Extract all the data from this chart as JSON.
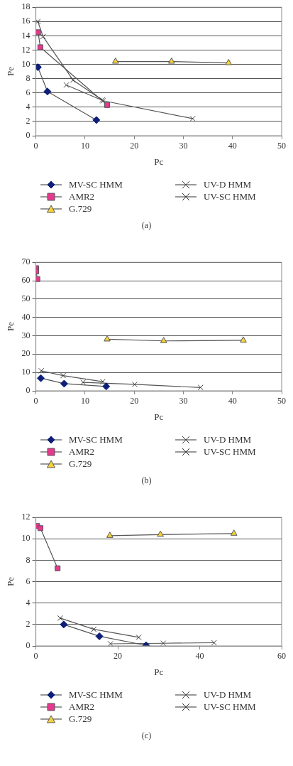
{
  "chart_data": [
    {
      "type": "line",
      "xlabel": "Pc",
      "ylabel": "Pe",
      "xlim": [
        0,
        50
      ],
      "xticks": [
        0,
        10,
        20,
        30,
        40,
        50
      ],
      "ylim": [
        0,
        18
      ],
      "yticks": [
        0,
        2,
        4,
        6,
        8,
        10,
        12,
        14,
        16,
        18
      ],
      "grid": "y",
      "legend": "bottom",
      "annotations": [
        "(a)"
      ],
      "series": [
        {
          "name": "MV-SC HMM",
          "color": "#0d1f78",
          "marker": "diamond",
          "x": [
            0.4,
            2.35,
            12.3
          ],
          "values": [
            9.6,
            6.2,
            2.2
          ]
        },
        {
          "name": "UV-D HMM",
          "color": "#444444",
          "marker": "cross",
          "x": [
            6.2,
            13.7,
            31.9
          ],
          "values": [
            7.1,
            4.9,
            2.4
          ]
        },
        {
          "name": "AMR2",
          "color": "#e8378f",
          "marker": "square",
          "x": [
            0.45,
            0.9,
            14.5
          ],
          "values": [
            14.5,
            12.4,
            4.3
          ]
        },
        {
          "name": "UV-SC HMM",
          "color": "#333333",
          "marker": "cross",
          "x": [
            0.4,
            1.45,
            7.55,
            13.5
          ],
          "values": [
            16,
            13.9,
            7.8,
            5.0
          ]
        },
        {
          "name": "G.729",
          "color": "#f5d33c",
          "marker": "triangle",
          "x": [
            16.2,
            27.6,
            39.2
          ],
          "values": [
            10.4,
            10.4,
            10.2
          ]
        }
      ]
    },
    {
      "type": "line",
      "xlabel": "Pc",
      "ylabel": "Pe",
      "xlim": [
        0,
        50
      ],
      "xticks": [
        0,
        10,
        20,
        30,
        40,
        50
      ],
      "ylim": [
        0,
        70
      ],
      "yticks": [
        0,
        10,
        20,
        30,
        40,
        50,
        60,
        70
      ],
      "grid": "y",
      "legend": "bottom",
      "annotations": [
        "(b)"
      ],
      "series": [
        {
          "name": "MV-SC HMM",
          "color": "#0d1f78",
          "marker": "diamond",
          "x": [
            1.0,
            5.75,
            14.3
          ],
          "values": [
            6.9,
            3.9,
            2.4
          ]
        },
        {
          "name": "UV-D HMM",
          "color": "#444444",
          "marker": "cross",
          "x": [
            9.6,
            20.1,
            33.5
          ],
          "values": [
            4.6,
            3.5,
            1.8
          ]
        },
        {
          "name": "AMR2",
          "color": "#e8378f",
          "marker": "square",
          "x": [
            0.05,
            0.05,
            0.3
          ],
          "values": [
            66.8,
            65.1,
            60.9
          ]
        },
        {
          "name": "UV-SC HMM",
          "color": "#333333",
          "marker": "cross",
          "x": [
            1.1,
            5.55,
            13.6
          ],
          "values": [
            10.9,
            8.3,
            5.0
          ]
        },
        {
          "name": "G.729",
          "color": "#f5d33c",
          "marker": "triangle",
          "x": [
            14.5,
            26,
            42.2
          ],
          "values": [
            28.1,
            27.2,
            27.5
          ]
        }
      ]
    },
    {
      "type": "line",
      "xlabel": "Pc",
      "ylabel": "Pe",
      "xlim": [
        0,
        60
      ],
      "xticks": [
        0,
        20,
        40,
        60
      ],
      "ylim": [
        0,
        12
      ],
      "yticks": [
        0,
        2,
        4,
        6,
        8,
        10,
        12
      ],
      "grid": "y",
      "legend": "bottom",
      "annotations": [
        "(c)"
      ],
      "series": [
        {
          "name": "MV-SC HMM",
          "color": "#0d1f78",
          "marker": "diamond",
          "x": [
            6.8,
            15.5,
            26.9
          ],
          "values": [
            2.0,
            0.9,
            0.05
          ]
        },
        {
          "name": "UV-D HMM",
          "color": "#444444",
          "marker": "cross",
          "x": [
            18.2,
            31.1,
            43.5
          ],
          "values": [
            0.2,
            0.25,
            0.3
          ]
        },
        {
          "name": "AMR2",
          "color": "#e8378f",
          "marker": "square",
          "x": [
            0.3,
            1.1,
            5.3
          ],
          "values": [
            11.2,
            11.0,
            7.25
          ]
        },
        {
          "name": "UV-SC HMM",
          "color": "#333333",
          "marker": "cross",
          "x": [
            5.95,
            14.15,
            25.1
          ],
          "values": [
            2.6,
            1.55,
            0.8
          ]
        },
        {
          "name": "G.729",
          "color": "#f5d33c",
          "marker": "triangle",
          "x": [
            18.05,
            30.4,
            48.35
          ],
          "values": [
            10.3,
            10.4,
            10.5
          ]
        }
      ]
    }
  ]
}
